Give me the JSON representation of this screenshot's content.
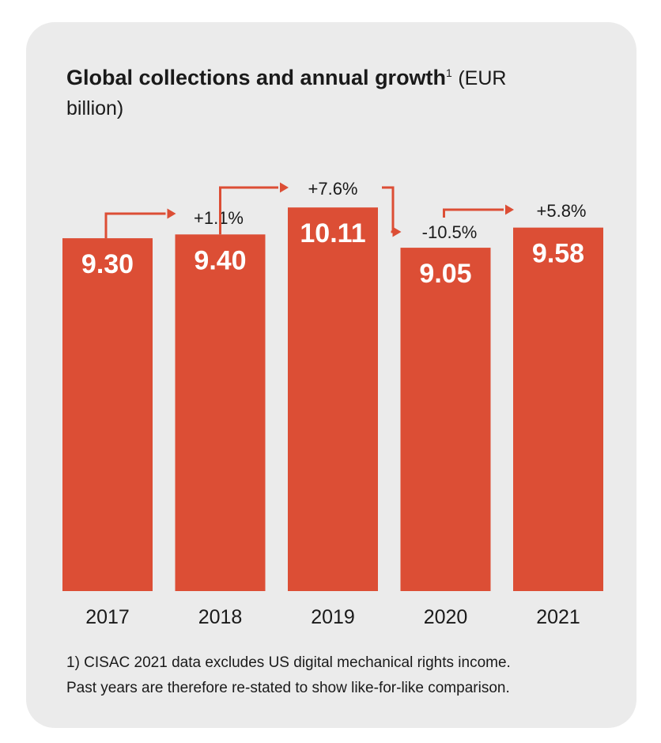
{
  "chart_data": {
    "type": "bar",
    "title_main": "Global collections and annual growth",
    "title_footnote_marker": "1",
    "title_unit": "(EUR billion)",
    "categories": [
      "2017",
      "2018",
      "2019",
      "2020",
      "2021"
    ],
    "values": [
      9.3,
      9.4,
      10.11,
      9.05,
      9.58
    ],
    "value_labels": [
      "9.30",
      "9.40",
      "10.11",
      "9.05",
      "9.58"
    ],
    "growth": [
      {
        "from": "2017",
        "to": "2018",
        "label": "+1.1%"
      },
      {
        "from": "2018",
        "to": "2019",
        "label": "+7.6%"
      },
      {
        "from": "2019",
        "to": "2020",
        "label": "-10.5%"
      },
      {
        "from": "2020",
        "to": "2021",
        "label": "+5.8%"
      }
    ],
    "colors": {
      "bar": "#dc4e35",
      "arrow": "#dc4e35",
      "value_text": "#ffffff",
      "text": "#1a1a1a",
      "card": "#ebebeb"
    }
  },
  "footnote": [
    "1) CISAC 2021 data excludes US digital mechanical rights income.",
    "Past years are therefore re-stated to show like-for-like comparison."
  ]
}
